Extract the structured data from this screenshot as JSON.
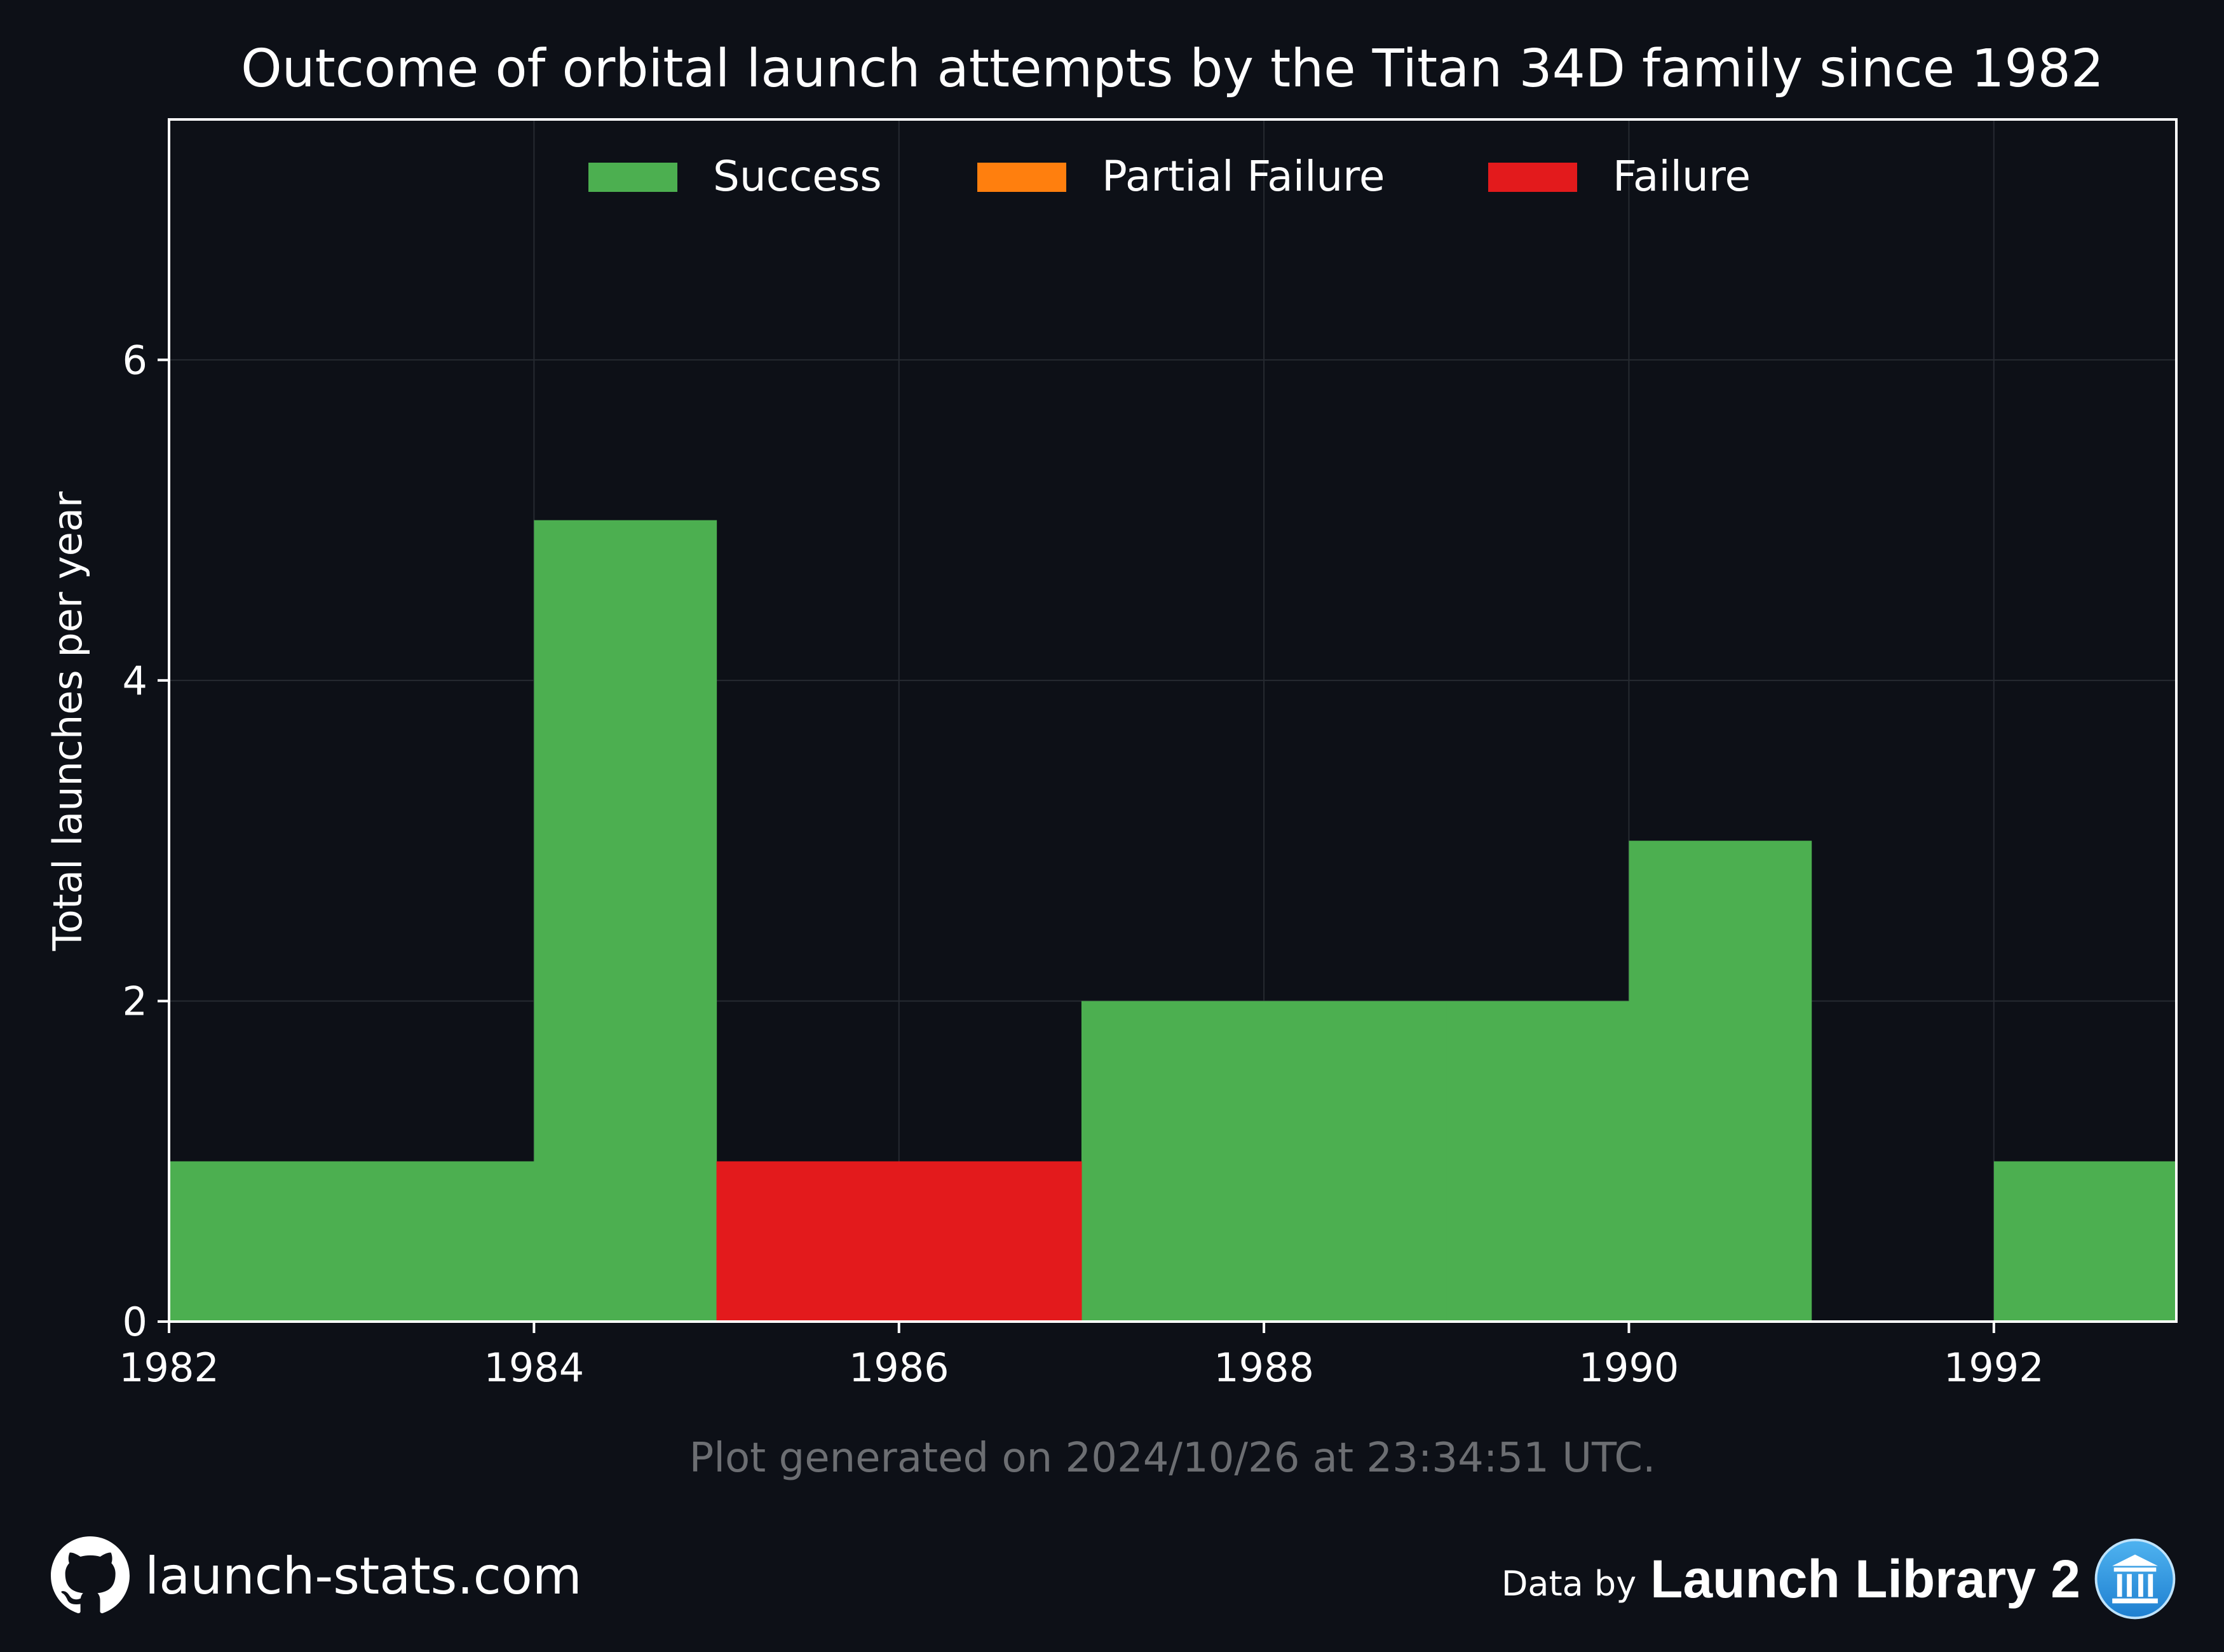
{
  "chart_data": {
    "type": "bar",
    "title": "Outcome of orbital launch attempts by the Titan 34D family since 1982",
    "ylabel": "Total launches per year",
    "xlabel": "",
    "x_bins": [
      1982,
      1983,
      1984,
      1985,
      1986,
      1987,
      1988,
      1989,
      1990,
      1991,
      1992
    ],
    "xlim": [
      1982,
      1993
    ],
    "ylim": [
      0,
      7.5
    ],
    "x_ticks": [
      "1982",
      "1984",
      "1986",
      "1988",
      "1990",
      "1992"
    ],
    "y_ticks": [
      "0",
      "2",
      "4",
      "6"
    ],
    "stacked": true,
    "grid": true,
    "legend_position": "top-center",
    "series": [
      {
        "name": "Success",
        "color": "#4caf50",
        "values": [
          1,
          1,
          5,
          0,
          0,
          2,
          2,
          2,
          3,
          0,
          1
        ]
      },
      {
        "name": "Partial Failure",
        "color": "#ff7f0e",
        "values": [
          0,
          0,
          0,
          0,
          0,
          0,
          0,
          0,
          0,
          0,
          0
        ]
      },
      {
        "name": "Failure",
        "color": "#e31a1c",
        "values": [
          0,
          0,
          0,
          1,
          1,
          0,
          0,
          0,
          0,
          0,
          0
        ]
      }
    ]
  },
  "footer": {
    "generated": "Plot generated on 2024/10/26 at 23:34:51 UTC.",
    "site": "launch-stats.com",
    "site_icon": "github-icon",
    "data_by": "Data by",
    "data_source": "Launch Library 2",
    "data_source_icon": "launch-library-logo-icon"
  },
  "colors": {
    "background": "#0d1017",
    "text": "#ffffff",
    "muted_text": "#6c6e72",
    "grid": "#262a31"
  }
}
